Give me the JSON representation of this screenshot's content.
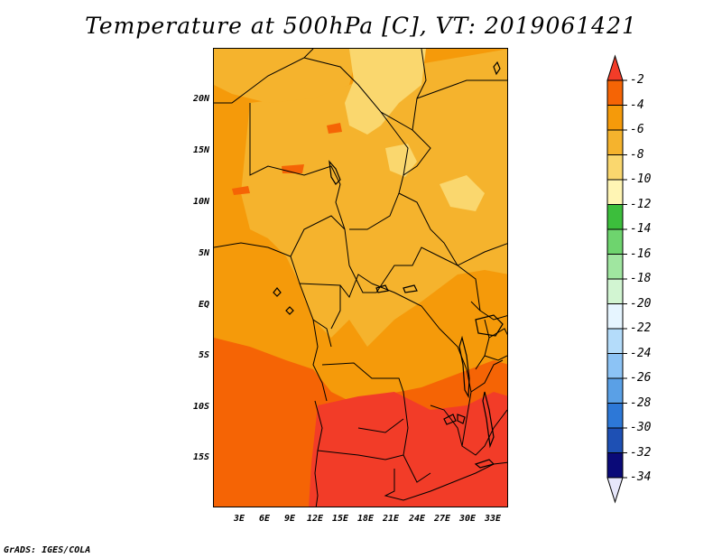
{
  "title": "Temperature at 500hPa [C], VT: 2019061421",
  "credit": "GrADS: IGES/COLA",
  "map": {
    "lat_ticks": [
      "20N",
      "15N",
      "10N",
      "5N",
      "EQ",
      "5S",
      "10S",
      "15S"
    ],
    "lon_ticks": [
      "3E",
      "6E",
      "9E",
      "12E",
      "15E",
      "18E",
      "21E",
      "24E",
      "27E",
      "30E",
      "33E"
    ]
  },
  "colorbar": {
    "labels": [
      "-2",
      "-4",
      "-6",
      "-8",
      "-10",
      "-12",
      "-14",
      "-16",
      "-18",
      "-20",
      "-22",
      "-24",
      "-26",
      "-28",
      "-30",
      "-32",
      "-34"
    ],
    "colors": [
      "#f23c28",
      "#f56405",
      "#f59a0a",
      "#f5b32d",
      "#fad76e",
      "#fff5b4",
      "#3cbe3c",
      "#6ed46e",
      "#a0e6a0",
      "#d2f5d2",
      "#e6f5ff",
      "#b4dcfa",
      "#8cc3f5",
      "#5aa0e6",
      "#2d78d7",
      "#1e50b4",
      "#0a0a78",
      "#e6e6fa"
    ]
  },
  "field_colors": {
    "neg2_0": "#f23c28",
    "neg4_neg2": "#f56405",
    "neg6_neg4": "#f59a0a",
    "neg8_neg6": "#f5b32d",
    "neg10_neg8": "#fad76e"
  }
}
